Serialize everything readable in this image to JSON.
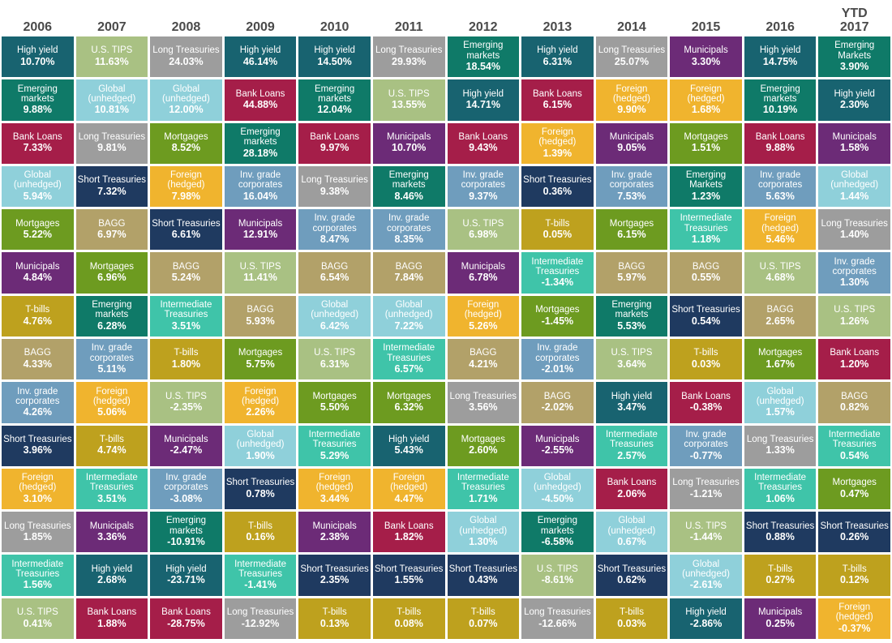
{
  "page": {
    "background": "#ffffff"
  },
  "header": {
    "text_color": "#4a4a4a",
    "years": [
      "2006",
      "2007",
      "2008",
      "2009",
      "2010",
      "2011",
      "2012",
      "2013",
      "2014",
      "2015",
      "2016",
      "YTD\n2017"
    ]
  },
  "colors": {
    "high yield": "#186370",
    "emerging markets": "#0f7a68",
    "bank loans": "#a51e49",
    "global (unhedged)": "#8fd0da",
    "mortgages": "#6d9b20",
    "municipals": "#6c2b77",
    "t-bills": "#bea11e",
    "bagg": "#b2a169",
    "inv. grade corporates": "#6f9dbd",
    "short treasuries": "#1f3a60",
    "foreign (hedged)": "#f0b42e",
    "long treasuries": "#9d9d9d",
    "intermediate treasuries": "#3fc4a9",
    "u.s. tips": "#a9c183"
  },
  "chart_data": {
    "type": "table",
    "description": "Fixed income asset class total returns by year, ranked best to worst within each column",
    "columns": [
      {
        "year": "2006",
        "cells": [
          {
            "label": "High yield",
            "value": "10.70%"
          },
          {
            "label": "Emerging markets",
            "value": "9.88%"
          },
          {
            "label": "Bank Loans",
            "value": "7.33%"
          },
          {
            "label": "Global (unhedged)",
            "value": "5.94%"
          },
          {
            "label": "Mortgages",
            "value": "5.22%"
          },
          {
            "label": "Municipals",
            "value": "4.84%"
          },
          {
            "label": "T-bills",
            "value": "4.76%"
          },
          {
            "label": "BAGG",
            "value": "4.33%"
          },
          {
            "label": "Inv. grade corporates",
            "value": "4.26%"
          },
          {
            "label": "Short Treasuries",
            "value": "3.96%"
          },
          {
            "label": "Foreign (hedged)",
            "value": "3.10%"
          },
          {
            "label": "Long Treasuries",
            "value": "1.85%"
          },
          {
            "label": "Intermediate Treasuries",
            "value": "1.56%"
          },
          {
            "label": "U.S. TIPS",
            "value": "0.41%"
          }
        ]
      },
      {
        "year": "2007",
        "cells": [
          {
            "label": "U.S. TIPS",
            "value": "11.63%"
          },
          {
            "label": "Global (unhedged)",
            "value": "10.81%"
          },
          {
            "label": "Long Treasuries",
            "value": "9.81%"
          },
          {
            "label": "Short Treasuries",
            "value": "7.32%"
          },
          {
            "label": "BAGG",
            "value": "6.97%"
          },
          {
            "label": "Mortgages",
            "value": "6.96%"
          },
          {
            "label": "Emerging markets",
            "value": "6.28%"
          },
          {
            "label": "Inv. grade corporates",
            "value": "5.11%"
          },
          {
            "label": "Foreign (hedged)",
            "value": "5.06%"
          },
          {
            "label": "T-bills",
            "value": "4.74%"
          },
          {
            "label": "Intermediate Treasuries",
            "value": "3.51%"
          },
          {
            "label": "Municipals",
            "value": "3.36%"
          },
          {
            "label": "High yield",
            "value": "2.68%"
          },
          {
            "label": "Bank Loans",
            "value": "1.88%"
          }
        ]
      },
      {
        "year": "2008",
        "cells": [
          {
            "label": "Long Treasuries",
            "value": "24.03%"
          },
          {
            "label": "Global (unhedged)",
            "value": "12.00%"
          },
          {
            "label": "Mortgages",
            "value": "8.52%"
          },
          {
            "label": "Foreign (hedged)",
            "value": "7.98%"
          },
          {
            "label": "Short Treasuries",
            "value": "6.61%"
          },
          {
            "label": "BAGG",
            "value": "5.24%"
          },
          {
            "label": "Intermediate Treasuries",
            "value": "3.51%"
          },
          {
            "label": "T-bills",
            "value": "1.80%"
          },
          {
            "label": "U.S. TIPS",
            "value": "-2.35%"
          },
          {
            "label": "Municipals",
            "value": "-2.47%"
          },
          {
            "label": "Inv. grade corporates",
            "value": "-3.08%"
          },
          {
            "label": "Emerging markets",
            "value": "-10.91%"
          },
          {
            "label": "High yield",
            "value": "-23.71%"
          },
          {
            "label": "Bank Loans",
            "value": "-28.75%"
          }
        ]
      },
      {
        "year": "2009",
        "cells": [
          {
            "label": "High yield",
            "value": "46.14%"
          },
          {
            "label": "Bank Loans",
            "value": "44.88%"
          },
          {
            "label": "Emerging markets",
            "value": "28.18%"
          },
          {
            "label": "Inv. grade corporates",
            "value": "16.04%"
          },
          {
            "label": "Municipals",
            "value": "12.91%"
          },
          {
            "label": "U.S. TIPS",
            "value": "11.41%"
          },
          {
            "label": "BAGG",
            "value": "5.93%"
          },
          {
            "label": "Mortgages",
            "value": "5.75%"
          },
          {
            "label": "Foreign (hedged)",
            "value": "2.26%"
          },
          {
            "label": "Global (unhedged)",
            "value": "1.90%"
          },
          {
            "label": "Short Treasuries",
            "value": "0.78%"
          },
          {
            "label": "T-bills",
            "value": "0.16%"
          },
          {
            "label": "Intermediate Treasuries",
            "value": "-1.41%"
          },
          {
            "label": "Long Treasuries",
            "value": "-12.92%"
          }
        ]
      },
      {
        "year": "2010",
        "cells": [
          {
            "label": "High yield",
            "value": "14.50%"
          },
          {
            "label": "Emerging markets",
            "value": "12.04%"
          },
          {
            "label": "Bank Loans",
            "value": "9.97%"
          },
          {
            "label": "Long Treasuries",
            "value": "9.38%"
          },
          {
            "label": "Inv. grade corporates",
            "value": "8.47%"
          },
          {
            "label": "BAGG",
            "value": "6.54%"
          },
          {
            "label": "Global (unhedged)",
            "value": "6.42%"
          },
          {
            "label": "U.S. TIPS",
            "value": "6.31%"
          },
          {
            "label": "Mortgages",
            "value": "5.50%"
          },
          {
            "label": "Intermediate Treasuries",
            "value": "5.29%"
          },
          {
            "label": "Foreign (hedged)",
            "value": "3.44%"
          },
          {
            "label": "Municipals",
            "value": "2.38%"
          },
          {
            "label": "Short Treasuries",
            "value": "2.35%"
          },
          {
            "label": "T-bills",
            "value": "0.13%"
          }
        ]
      },
      {
        "year": "2011",
        "cells": [
          {
            "label": "Long Treasuries",
            "value": "29.93%"
          },
          {
            "label": "U.S. TIPS",
            "value": "13.55%"
          },
          {
            "label": "Municipals",
            "value": "10.70%"
          },
          {
            "label": "Emerging markets",
            "value": "8.46%"
          },
          {
            "label": "Inv. grade corporates",
            "value": "8.35%"
          },
          {
            "label": "BAGG",
            "value": "7.84%"
          },
          {
            "label": "Global (unhedged)",
            "value": "7.22%"
          },
          {
            "label": "Intermediate Treasuries",
            "value": "6.57%"
          },
          {
            "label": "Mortgages",
            "value": "6.32%"
          },
          {
            "label": "High yield",
            "value": "5.43%"
          },
          {
            "label": "Foreign (hedged)",
            "value": "4.47%"
          },
          {
            "label": "Bank Loans",
            "value": "1.82%"
          },
          {
            "label": "Short Treasuries",
            "value": "1.55%"
          },
          {
            "label": "T-bills",
            "value": "0.08%"
          }
        ]
      },
      {
        "year": "2012",
        "cells": [
          {
            "label": "Emerging markets",
            "value": "18.54%"
          },
          {
            "label": "High yield",
            "value": "14.71%"
          },
          {
            "label": "Bank Loans",
            "value": "9.43%"
          },
          {
            "label": "Inv. grade corporates",
            "value": "9.37%"
          },
          {
            "label": "U.S. TIPS",
            "value": "6.98%"
          },
          {
            "label": "Municipals",
            "value": "6.78%"
          },
          {
            "label": "Foreign (hedged)",
            "value": "5.26%"
          },
          {
            "label": "BAGG",
            "value": "4.21%"
          },
          {
            "label": "Long Treasuries",
            "value": "3.56%"
          },
          {
            "label": "Mortgages",
            "value": "2.60%"
          },
          {
            "label": "Intermediate Treasuries",
            "value": "1.71%"
          },
          {
            "label": "Global (unhedged)",
            "value": "1.30%"
          },
          {
            "label": "Short Treasuries",
            "value": "0.43%"
          },
          {
            "label": "T-bills",
            "value": "0.07%"
          }
        ]
      },
      {
        "year": "2013",
        "cells": [
          {
            "label": "High yield",
            "value": "6.31%"
          },
          {
            "label": "Bank Loans",
            "value": "6.15%"
          },
          {
            "label": "Foreign (hedged)",
            "value": "1.39%"
          },
          {
            "label": "Short Treasuries",
            "value": "0.36%"
          },
          {
            "label": "T-bills",
            "value": "0.05%"
          },
          {
            "label": "Intermediate Treasuries",
            "value": "-1.34%"
          },
          {
            "label": "Mortgages",
            "value": "-1.45%"
          },
          {
            "label": "Inv. grade corporates",
            "value": "-2.01%"
          },
          {
            "label": "BAGG",
            "value": "-2.02%"
          },
          {
            "label": "Municipals",
            "value": "-2.55%"
          },
          {
            "label": "Global (unhedged)",
            "value": "-4.50%"
          },
          {
            "label": "Emerging markets",
            "value": "-6.58%"
          },
          {
            "label": "U.S. TIPS",
            "value": "-8.61%"
          },
          {
            "label": "Long Treasuries",
            "value": "-12.66%"
          }
        ]
      },
      {
        "year": "2014",
        "cells": [
          {
            "label": "Long Treasuries",
            "value": "25.07%"
          },
          {
            "label": "Foreign (hedged)",
            "value": "9.90%"
          },
          {
            "label": "Municipals",
            "value": "9.05%"
          },
          {
            "label": "Inv. grade corporates",
            "value": "7.53%"
          },
          {
            "label": "Mortgages",
            "value": "6.15%"
          },
          {
            "label": "BAGG",
            "value": "5.97%"
          },
          {
            "label": "Emerging markets",
            "value": "5.53%"
          },
          {
            "label": "U.S. TIPS",
            "value": "3.64%"
          },
          {
            "label": "High yield",
            "value": "3.47%"
          },
          {
            "label": "Intermediate Treasuries",
            "value": "2.57%"
          },
          {
            "label": "Bank Loans",
            "value": "2.06%"
          },
          {
            "label": "Global (unhedged)",
            "value": "0.67%"
          },
          {
            "label": "Short Treasuries",
            "value": "0.62%"
          },
          {
            "label": "T-bills",
            "value": "0.03%"
          }
        ]
      },
      {
        "year": "2015",
        "cells": [
          {
            "label": "Municipals",
            "value": "3.30%"
          },
          {
            "label": "Foreign (hedged)",
            "value": "1.68%"
          },
          {
            "label": "Mortgages",
            "value": "1.51%"
          },
          {
            "label": "Emerging Markets",
            "value": "1.23%"
          },
          {
            "label": "Intermediate Treasuries",
            "value": "1.18%"
          },
          {
            "label": "BAGG",
            "value": "0.55%"
          },
          {
            "label": "Short Treasuries",
            "value": "0.54%"
          },
          {
            "label": "T-bills",
            "value": "0.03%"
          },
          {
            "label": "Bank Loans",
            "value": "-0.38%"
          },
          {
            "label": "Inv. grade corporates",
            "value": "-0.77%"
          },
          {
            "label": "Long Treasuries",
            "value": "-1.21%"
          },
          {
            "label": "U.S. TIPS",
            "value": "-1.44%"
          },
          {
            "label": "Global (unhedged)",
            "value": "-2.61%"
          },
          {
            "label": "High yield",
            "value": "-2.86%"
          }
        ]
      },
      {
        "year": "2016",
        "cells": [
          {
            "label": "High yield",
            "value": "14.75%"
          },
          {
            "label": "Emerging markets",
            "value": "10.19%"
          },
          {
            "label": "Bank Loans",
            "value": "9.88%"
          },
          {
            "label": "Inv. grade corporates",
            "value": "5.63%"
          },
          {
            "label": "Foreign (hedged)",
            "value": "5.46%"
          },
          {
            "label": "U.S. TIPS",
            "value": "4.68%"
          },
          {
            "label": "BAGG",
            "value": "2.65%"
          },
          {
            "label": "Mortgages",
            "value": "1.67%"
          },
          {
            "label": "Global (unhedged)",
            "value": "1.57%"
          },
          {
            "label": "Long Treasuries",
            "value": "1.33%"
          },
          {
            "label": "Intermediate Treasuries",
            "value": "1.06%"
          },
          {
            "label": "Short Treasuries",
            "value": "0.88%"
          },
          {
            "label": "T-bills",
            "value": "0.27%"
          },
          {
            "label": "Municipals",
            "value": "0.25%"
          }
        ]
      },
      {
        "year": "YTD 2017",
        "cells": [
          {
            "label": "Emerging Markets",
            "value": "3.90%"
          },
          {
            "label": "High yield",
            "value": "2.30%"
          },
          {
            "label": "Municipals",
            "value": "1.58%"
          },
          {
            "label": "Global (unhedged)",
            "value": "1.44%"
          },
          {
            "label": "Long Treasuries",
            "value": "1.40%"
          },
          {
            "label": "Inv. grade corporates",
            "value": "1.30%"
          },
          {
            "label": "U.S. TIPS",
            "value": "1.26%"
          },
          {
            "label": "Bank Loans",
            "value": "1.20%"
          },
          {
            "label": "BAGG",
            "value": "0.82%"
          },
          {
            "label": "Intermediate Treasuries",
            "value": "0.54%"
          },
          {
            "label": "Mortgages",
            "value": "0.47%"
          },
          {
            "label": "Short Treasuries",
            "value": "0.26%"
          },
          {
            "label": "T-bills",
            "value": "0.12%"
          },
          {
            "label": "Foreign (hedged)",
            "value": "-0.37%"
          }
        ]
      }
    ]
  }
}
